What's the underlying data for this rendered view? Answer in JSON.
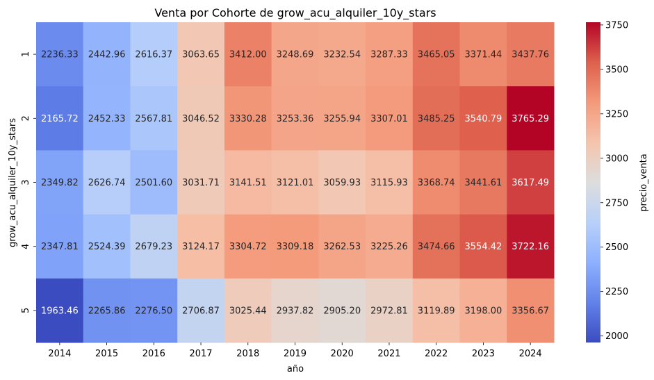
{
  "chart_data": {
    "type": "heatmap",
    "title": "Venta por Cohorte de grow_acu_alquiler_10y_stars",
    "xlabel": "año",
    "ylabel": "grow_acu_alquiler_10y_stars",
    "colorbar_label": "precio_venta",
    "colormap": "coolwarm",
    "x": [
      "2014",
      "2015",
      "2016",
      "2017",
      "2018",
      "2019",
      "2020",
      "2021",
      "2022",
      "2023",
      "2024"
    ],
    "y": [
      "1",
      "2",
      "3",
      "4",
      "5"
    ],
    "values": [
      [
        2236.33,
        2442.96,
        2616.37,
        3063.65,
        3412.0,
        3248.69,
        3232.54,
        3287.33,
        3465.05,
        3371.44,
        3437.76
      ],
      [
        2165.72,
        2452.33,
        2567.81,
        3046.52,
        3330.28,
        3253.36,
        3255.94,
        3307.01,
        3485.25,
        3540.79,
        3765.29
      ],
      [
        2349.82,
        2626.74,
        2501.6,
        3031.71,
        3141.51,
        3121.01,
        3059.93,
        3115.93,
        3368.74,
        3441.61,
        3617.49
      ],
      [
        2347.81,
        2524.39,
        2679.23,
        3124.17,
        3304.72,
        3309.18,
        3262.53,
        3225.26,
        3474.66,
        3554.42,
        3722.16
      ],
      [
        1963.46,
        2265.86,
        2276.5,
        2706.87,
        3025.44,
        2937.82,
        2905.2,
        2972.81,
        3119.89,
        3198.0,
        3356.67
      ]
    ],
    "value_format": "%.2f",
    "vmin": 1963.46,
    "vmax": 3765.29,
    "colorbar_ticks": [
      2000,
      2250,
      2500,
      2750,
      3000,
      3250,
      3500,
      3750
    ],
    "colorbar_tick_labels": [
      "2000",
      "2250",
      "2500",
      "2750",
      "3000",
      "3250",
      "3500",
      "3750"
    ]
  }
}
